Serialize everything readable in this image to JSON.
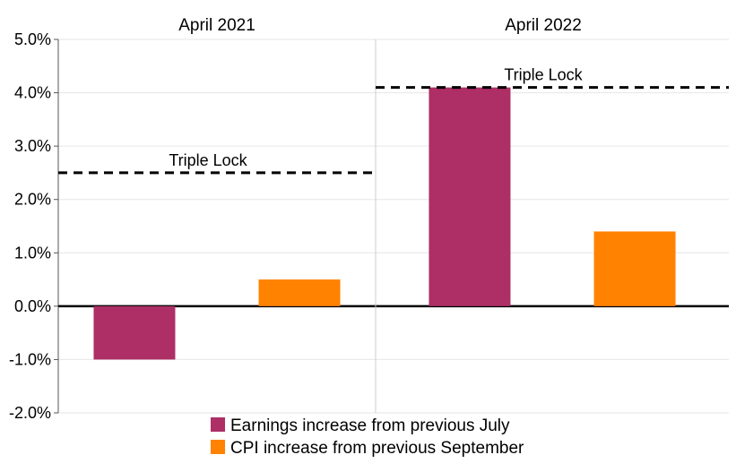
{
  "chart_data": {
    "type": "bar",
    "panels": [
      {
        "title": "April 2021",
        "values": [
          -1.0,
          0.5
        ],
        "reference_line": {
          "label": "Triple Lock",
          "value": 2.5
        }
      },
      {
        "title": "April 2022",
        "values": [
          4.1,
          1.4
        ],
        "reference_line": {
          "label": "Triple Lock",
          "value": 4.1
        }
      }
    ],
    "series": [
      {
        "name": "Earnings increase from previous July",
        "color": "#AD2F66"
      },
      {
        "name": "CPI increase from previous September",
        "color": "#FF8200"
      }
    ],
    "ylim": [
      -2.0,
      5.0
    ],
    "yticks": [
      "5.0%",
      "4.0%",
      "3.0%",
      "2.0%",
      "1.0%",
      "0.0%",
      "-1.0%",
      "-2.0%"
    ],
    "ytick_values": [
      5,
      4,
      3,
      2,
      1,
      0,
      -1,
      -2
    ],
    "grid": true,
    "legend_position": "bottom"
  }
}
